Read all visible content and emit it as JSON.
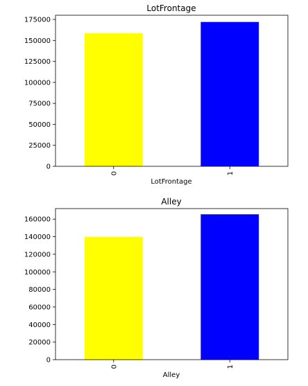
{
  "chart_data": [
    {
      "type": "bar",
      "title": "LotFrontage",
      "xlabel": "LotFrontage",
      "ylabel": "",
      "categories": [
        "0",
        "1"
      ],
      "values": [
        158500,
        172000
      ],
      "colors": [
        "#ffff00",
        "#0000ff"
      ],
      "ylim": [
        0,
        180000
      ],
      "yticks": [
        0,
        25000,
        50000,
        75000,
        100000,
        125000,
        150000,
        175000
      ],
      "grid": false,
      "legend": "none"
    },
    {
      "type": "bar",
      "title": "Alley",
      "xlabel": "Alley",
      "ylabel": "",
      "categories": [
        "0",
        "1"
      ],
      "values": [
        140000,
        165500
      ],
      "colors": [
        "#ffff00",
        "#0000ff"
      ],
      "ylim": [
        0,
        172000
      ],
      "yticks": [
        0,
        20000,
        40000,
        60000,
        80000,
        100000,
        120000,
        140000,
        160000
      ],
      "grid": false,
      "legend": "none"
    }
  ]
}
